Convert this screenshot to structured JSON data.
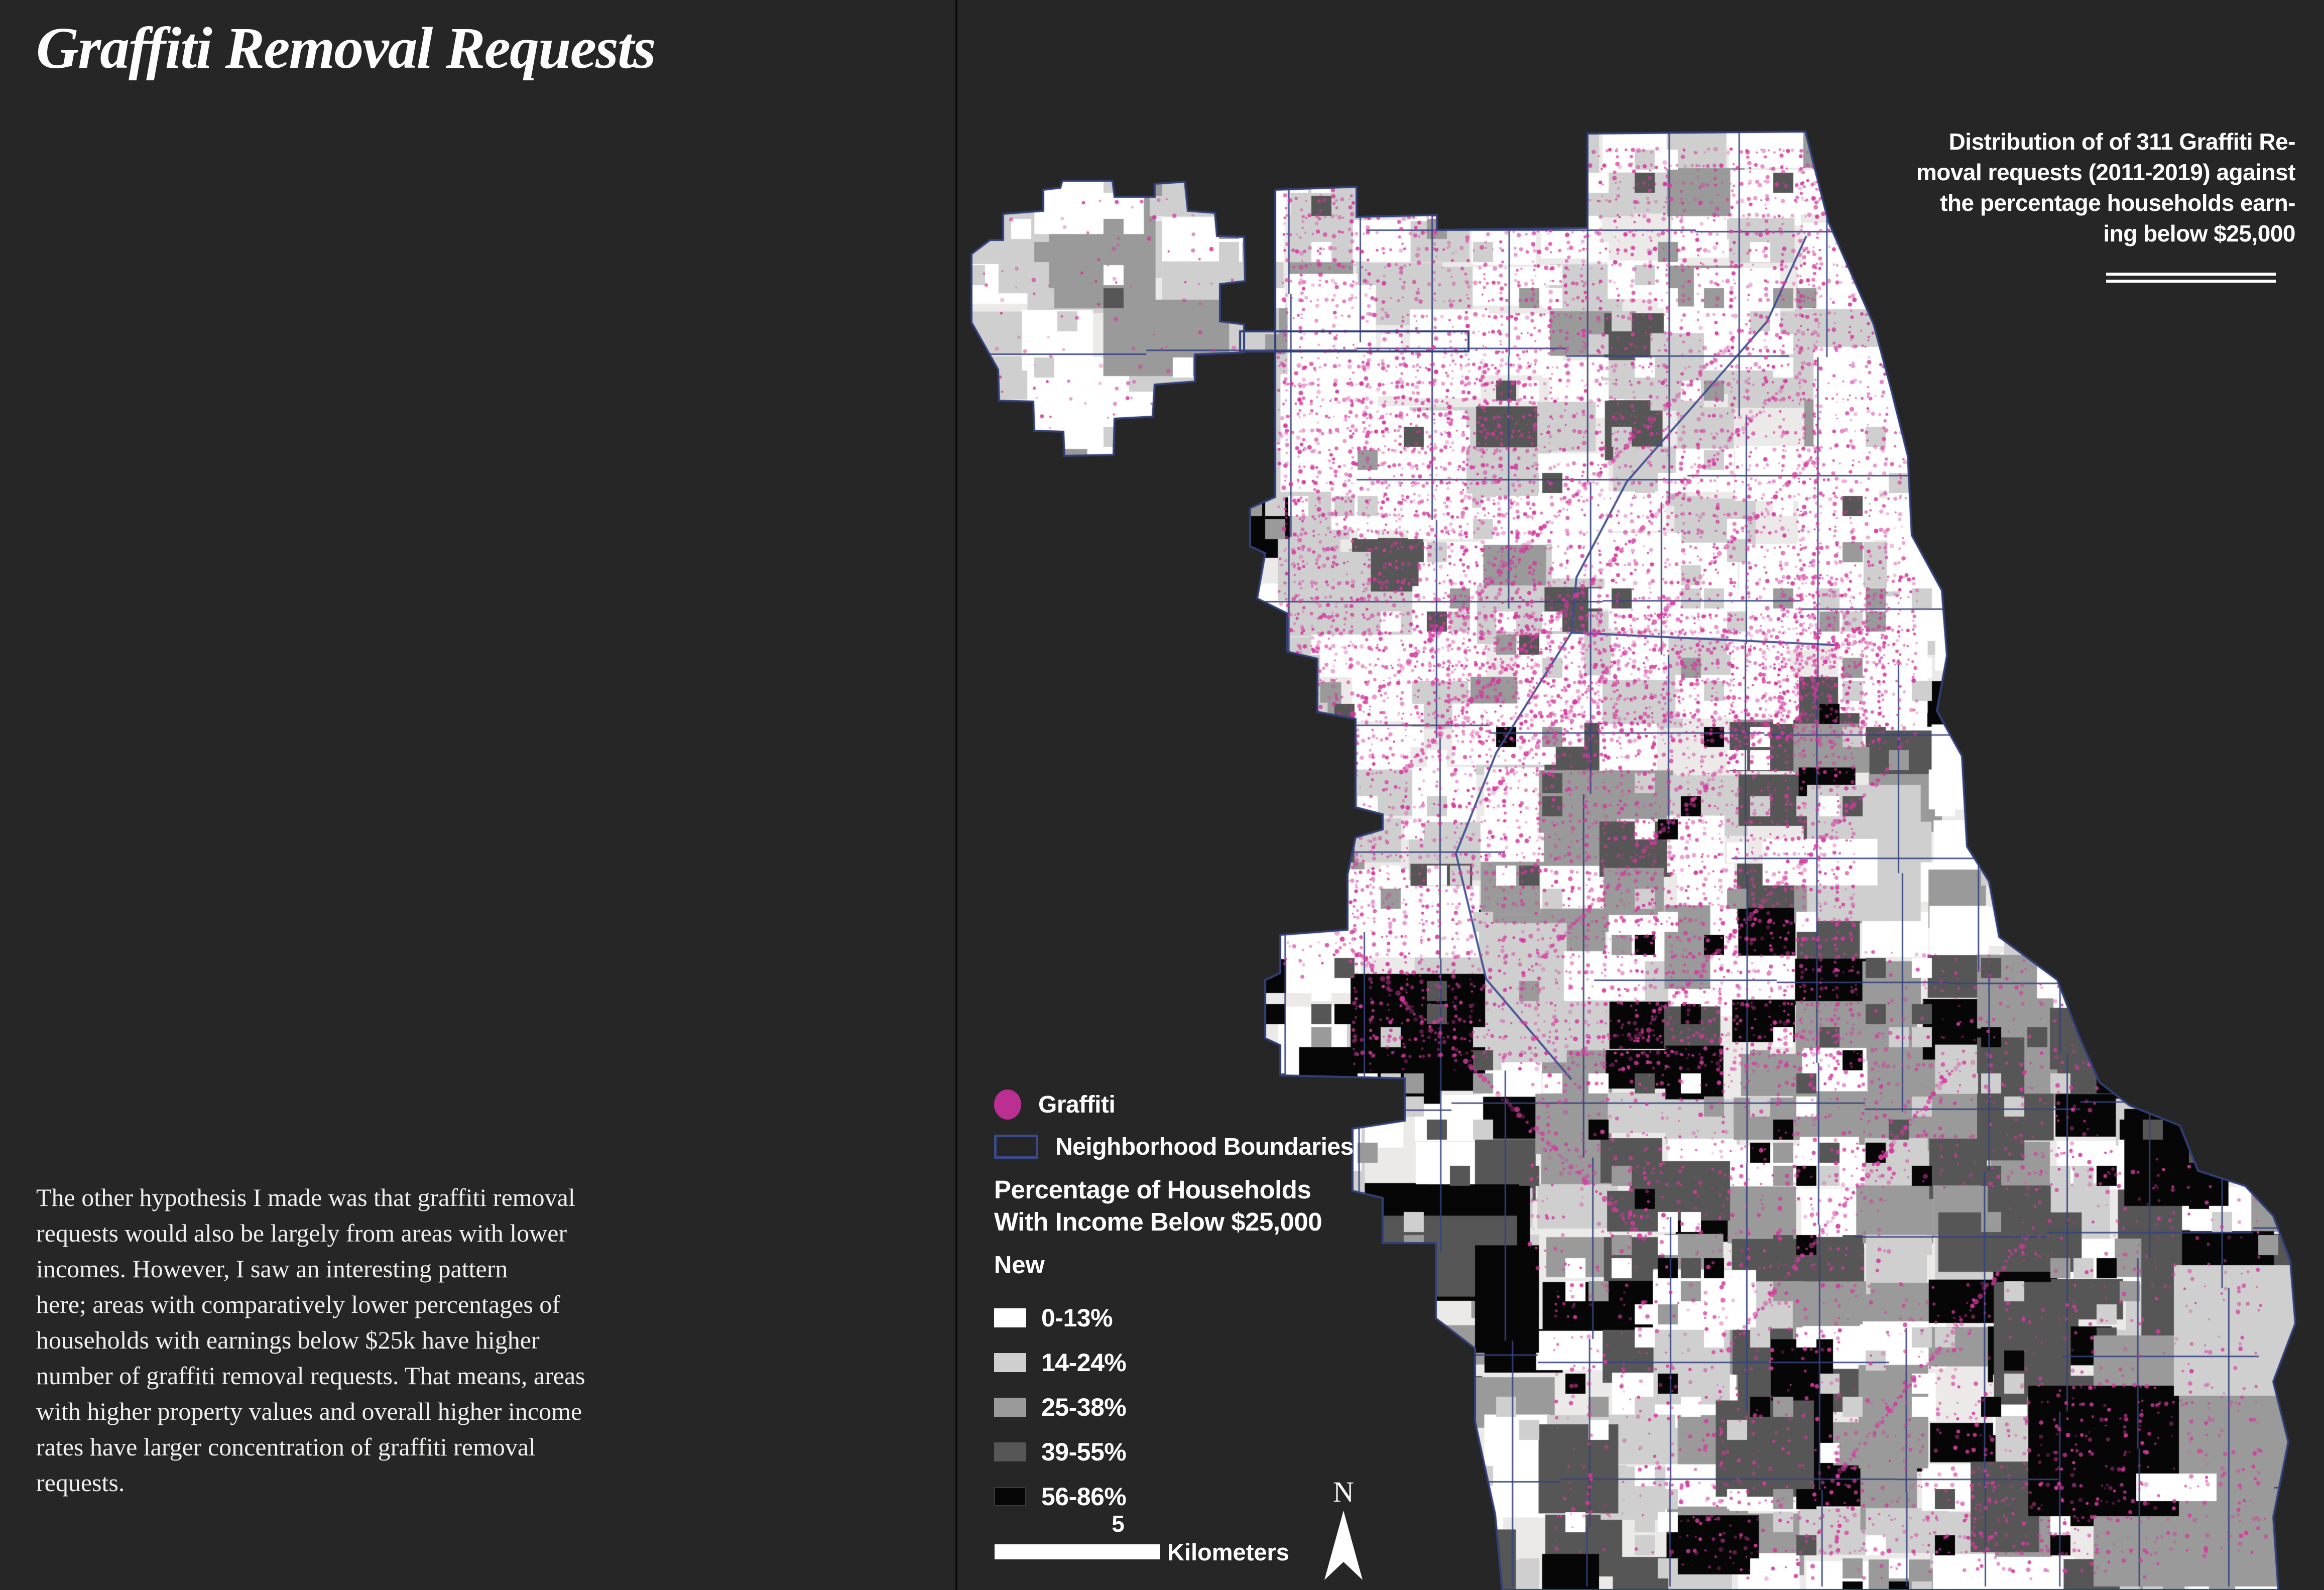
{
  "page": {
    "background": "#262626",
    "divider_color": "#0a0a0a"
  },
  "title": "Graffiti Removal Requests",
  "body_text": "The other hypothesis I made was that graffiti removal\nrequests would also be largely from areas with lower\nincomes. However, I saw an interesting pattern\nhere; areas with comparatively lower percentages of\nhouseholds with earnings below $25k have higher\nnumber of graffiti removal requests. That means, areas\nwith higher property values and overall higher income\nrates have larger concentration of graffiti removal\nrequests.",
  "caption": {
    "text": "Distribution of of 311 Graffiti Re-\nmoval requests (2011-2019) against\nthe percentage households earn-\ning below $25,000"
  },
  "legend": {
    "graffiti_label": "Graffiti",
    "graffiti_color": "#bb2e92",
    "boundaries_label": "Neighborhood Boundaries",
    "boundary_color": "#3b4a87",
    "choropleth_title": "Percentage of Households\nWith Income Below $25,000",
    "layer_name": "New",
    "classes": [
      {
        "label": "0-13%",
        "color": "#ffffff"
      },
      {
        "label": "14-24%",
        "color": "#cfcfcf"
      },
      {
        "label": "25-38%",
        "color": "#9a9a9a"
      },
      {
        "label": "39-55%",
        "color": "#565656"
      },
      {
        "label": "56-86%",
        "color": "#060606"
      }
    ]
  },
  "scale_bar": {
    "value": "5",
    "unit": "Kilometers"
  },
  "north_arrow": {
    "label": "N"
  },
  "map": {
    "base_color": "#eceae8",
    "dot_color": "#d6399f",
    "boundary_color": "#35447e",
    "river_color": "#3c4d8f",
    "outline_color": "#31407a",
    "null_label": "null"
  }
}
